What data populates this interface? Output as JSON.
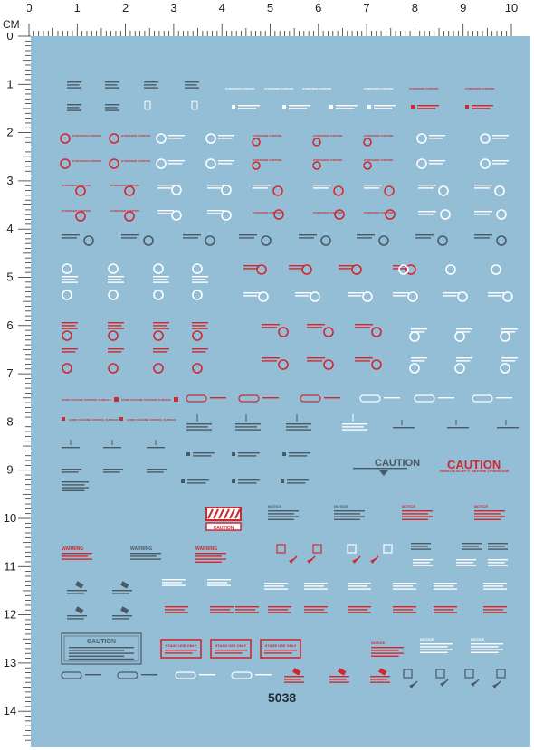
{
  "ruler": {
    "unit": "CM",
    "top_labels": [
      "0",
      "1",
      "2",
      "3",
      "4",
      "5",
      "6",
      "7",
      "8",
      "9",
      "10"
    ],
    "left_labels": [
      "0",
      "1",
      "2",
      "3",
      "4",
      "5",
      "6",
      "7",
      "8",
      "9",
      "10",
      "11",
      "12",
      "13",
      "14"
    ]
  },
  "sheet": {
    "number": "5038",
    "background_color": "#94bdd6",
    "decal_colors": [
      "#ffffff",
      "#d0282e",
      "#4a5a64"
    ],
    "texts": {
      "hydrogen": "HYDROGEN CONTROL",
      "avoid": "AVOID CIGOUNE CONTROL SURFACE",
      "caution": "CAUTION",
      "remote": "REMOTE ECAP IT BEFORE OPERATION",
      "notice": "NOTICE",
      "warning": "WARNING",
      "stage": "STAGE USE ONLY",
      "danger": "DANGER",
      "hazard": "CAUTION"
    }
  }
}
